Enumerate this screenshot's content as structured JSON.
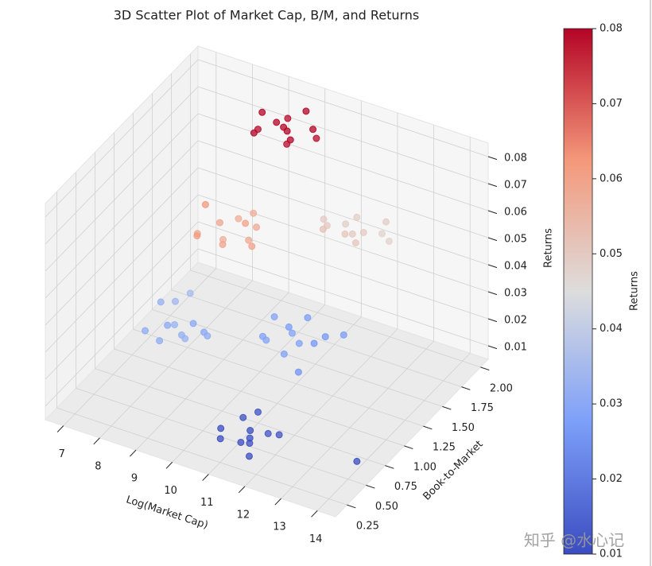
{
  "chart_data": {
    "type": "scatter3d",
    "title": "3D Scatter Plot of Market Cap, B/M, and Returns",
    "xlabel": "Log(Market Cap)",
    "ylabel": "Book-to-Market",
    "zlabel": "Returns",
    "x": [
      10.6,
      10.9,
      11.2,
      11.5,
      11.8,
      10.8,
      11.1,
      11.4,
      11.7,
      12.0,
      11.3,
      14.1,
      8.2,
      8.5,
      8.8,
      9.1,
      9.4,
      8.4,
      8.7,
      9.0,
      9.3,
      8.6,
      8.0,
      9.6,
      10.6,
      10.9,
      11.2,
      11.5,
      11.8,
      10.8,
      11.1,
      11.4,
      11.7,
      12.2,
      10.5,
      11.9,
      8.8,
      9.1,
      9.4,
      9.7,
      10.0,
      9.0,
      9.3,
      9.6,
      9.9,
      10.3,
      8.6,
      9.5,
      10.9,
      11.2,
      11.5,
      11.8,
      12.1,
      11.0,
      11.3,
      11.6,
      11.9,
      12.4,
      10.7,
      12.0,
      9.1,
      9.4,
      9.7,
      10.0,
      10.3,
      9.2,
      9.5,
      9.8,
      10.1,
      10.5,
      8.9,
      9.9
    ],
    "y": [
      0.45,
      0.6,
      0.55,
      0.4,
      0.5,
      0.35,
      0.7,
      0.45,
      0.3,
      0.55,
      0.38,
      0.57,
      0.6,
      0.75,
      0.7,
      0.65,
      0.8,
      0.9,
      0.55,
      0.85,
      0.6,
      1.0,
      0.9,
      0.75,
      1.0,
      1.2,
      1.1,
      1.05,
      1.25,
      0.95,
      1.35,
      0.9,
      1.15,
      1.3,
      1.2,
      0.85,
      1.0,
      1.15,
      1.05,
      1.2,
      1.1,
      0.9,
      1.3,
      0.95,
      1.25,
      1.0,
      1.2,
      1.4,
      1.7,
      1.8,
      1.65,
      1.75,
      1.85,
      1.6,
      1.9,
      1.7,
      1.6,
      1.8,
      1.75,
      1.95,
      1.65,
      1.75,
      1.7,
      1.6,
      1.8,
      1.55,
      1.85,
      1.7,
      1.6,
      1.75,
      1.8,
      1.9
    ],
    "z": [
      0.01,
      0.011,
      0.009,
      0.01,
      0.012,
      0.01,
      0.011,
      0.01,
      0.009,
      0.011,
      0.01,
      0.01,
      0.031,
      0.03,
      0.033,
      0.032,
      0.03,
      0.034,
      0.031,
      0.03,
      0.033,
      0.035,
      0.032,
      0.031,
      0.028,
      0.027,
      0.029,
      0.028,
      0.026,
      0.029,
      0.027,
      0.028,
      0.026,
      0.027,
      0.029,
      0.025,
      0.058,
      0.059,
      0.057,
      0.06,
      0.058,
      0.061,
      0.057,
      0.059,
      0.058,
      0.06,
      0.062,
      0.057,
      0.05,
      0.049,
      0.051,
      0.05,
      0.048,
      0.052,
      0.049,
      0.05,
      0.051,
      0.048,
      0.05,
      0.049,
      0.079,
      0.08,
      0.081,
      0.079,
      0.08,
      0.081,
      0.079,
      0.08,
      0.081,
      0.079,
      0.08,
      0.082
    ],
    "xlim": [
      6.5,
      14.5
    ],
    "ylim": [
      0.1,
      2.1
    ],
    "zlim": [
      0.005,
      0.085
    ],
    "xticks": [
      7,
      8,
      9,
      10,
      11,
      12,
      13,
      14
    ],
    "yticks": [
      0.25,
      {
        "value": 0.5,
        "label": "0.50"
      },
      0.75,
      {
        "value": 1.0,
        "label": "1.00"
      },
      1.25,
      {
        "value": 1.5,
        "label": "1.50"
      },
      1.75,
      {
        "value": 2.0,
        "label": "2.00"
      }
    ],
    "zticks": [
      0.01,
      0.02,
      0.03,
      0.04,
      0.05,
      0.06,
      0.07,
      0.08
    ],
    "grid": true,
    "cmap": "coolwarm",
    "clim": [
      0.01,
      0.08
    ],
    "colorbar_label": "Returns",
    "colorbar_ticks": [
      0.01,
      0.02,
      0.03,
      0.04,
      0.05,
      0.06,
      0.07,
      0.08
    ],
    "watermark": "知乎 @水心记"
  }
}
